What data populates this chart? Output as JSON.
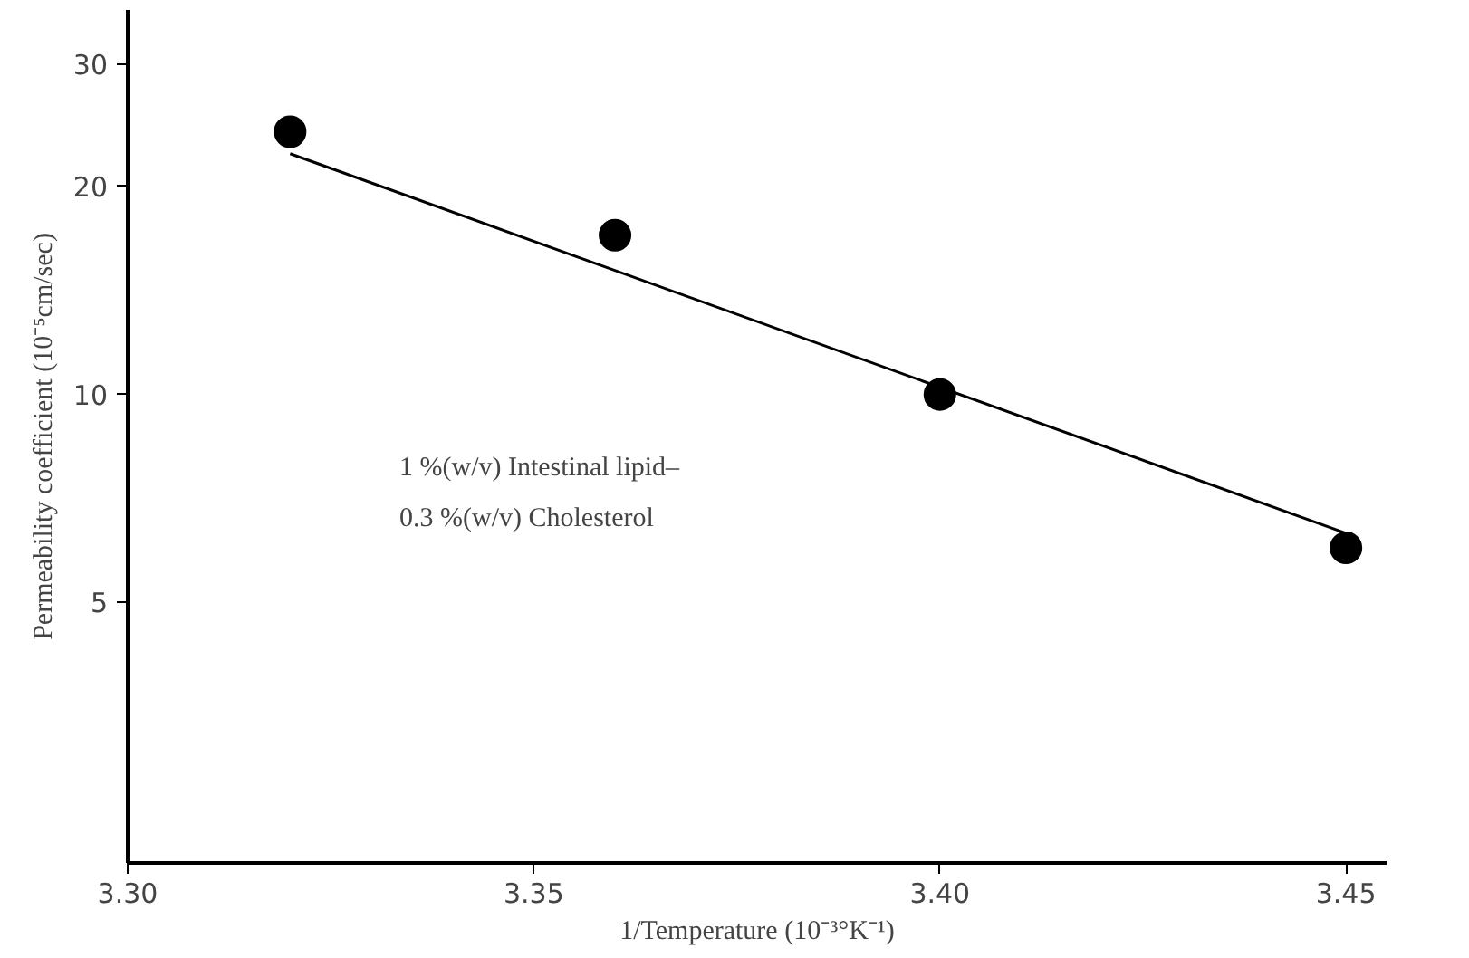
{
  "chart_data": {
    "type": "scatter",
    "xlabel": "1/Temperature (10⁻³°K⁻¹)",
    "ylabel": "Permeability coefficient (10⁻⁵cm/sec)",
    "annotations": [
      "1 %(w/v) Intestinal lipid–",
      "0.3 %(w/v) Cholesterol"
    ],
    "log": "y",
    "grid": false,
    "marker": "circle",
    "xlim": [
      3.3,
      3.455
    ],
    "ylim": [
      2.1,
      36
    ],
    "xticks": [
      {
        "value": 3.3,
        "label": "3.30"
      },
      {
        "value": 3.35,
        "label": "3.35"
      },
      {
        "value": 3.4,
        "label": "3.40"
      },
      {
        "value": 3.45,
        "label": "3.45"
      }
    ],
    "yticks": [
      5,
      10,
      20,
      30
    ],
    "series": [
      {
        "color": "#000000",
        "x": [
          3.32,
          3.36,
          3.4,
          3.45
        ],
        "values": [
          24,
          17,
          10,
          6
        ]
      },
      {
        "type": "line",
        "color": "#000000",
        "line_style": "solid",
        "marker": "none",
        "x": [
          3.32,
          3.45
        ],
        "values": [
          22.3,
          6.3
        ]
      }
    ]
  }
}
